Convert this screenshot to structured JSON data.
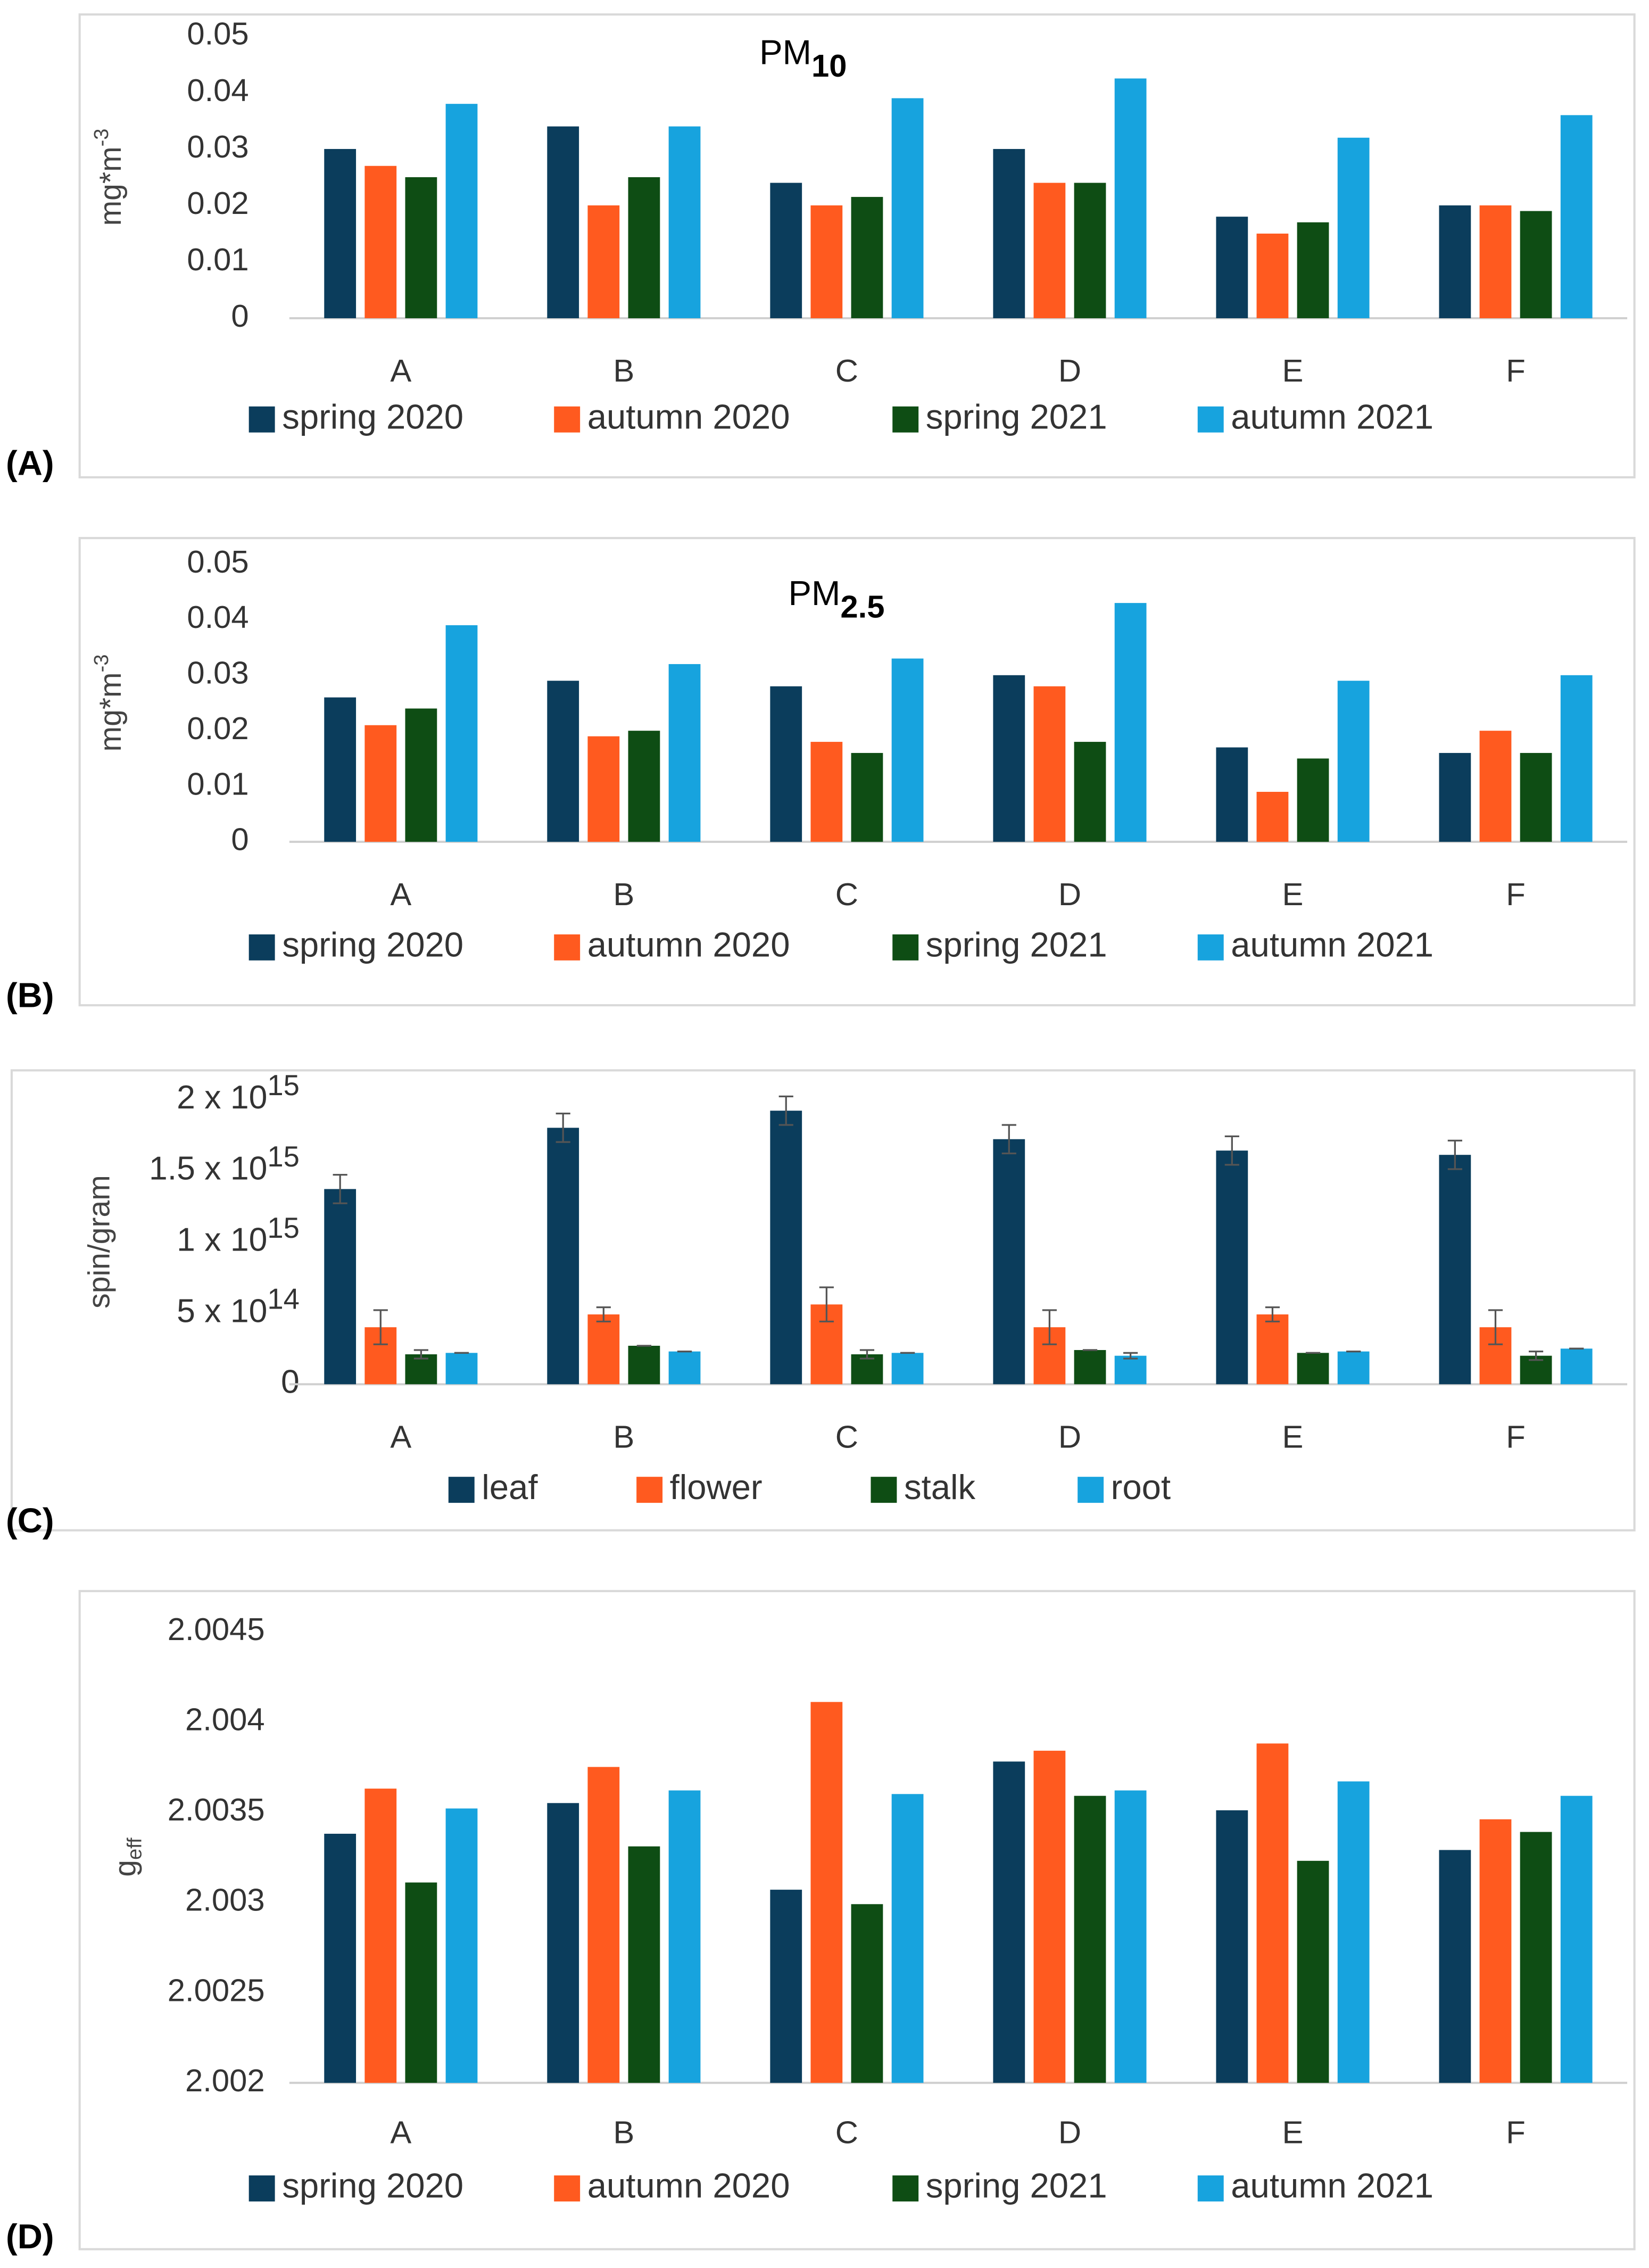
{
  "chart_data": [
    {
      "type": "bar",
      "panel_label": "(A)",
      "title": "PM",
      "title_subscript": "10",
      "y_label": "mg*m",
      "y_label_superscript": "-3",
      "categories": [
        "A",
        "B",
        "C",
        "D",
        "E",
        "F"
      ],
      "series": [
        {
          "name": "spring 2020",
          "color": "#0b3d5c",
          "values": [
            0.03,
            0.034,
            0.024,
            0.03,
            0.018,
            0.02
          ]
        },
        {
          "name": "autumn 2020",
          "color": "#ff5a1f",
          "values": [
            0.027,
            0.02,
            0.02,
            0.024,
            0.015,
            0.02
          ]
        },
        {
          "name": "spring 2021",
          "color": "#0e4d14",
          "values": [
            0.025,
            0.025,
            0.0215,
            0.024,
            0.017,
            0.019
          ]
        },
        {
          "name": "autumn 2021",
          "color": "#17a3de",
          "values": [
            0.038,
            0.034,
            0.039,
            0.0425,
            0.032,
            0.036
          ]
        }
      ],
      "ylim": [
        0,
        0.05
      ],
      "yticks": [
        0,
        0.01,
        0.02,
        0.03,
        0.04,
        0.05
      ]
    },
    {
      "type": "bar",
      "panel_label": "(B)",
      "title": "PM",
      "title_subscript": "2.5",
      "y_label": "mg*m",
      "y_label_superscript": "-3",
      "categories": [
        "A",
        "B",
        "C",
        "D",
        "E",
        "F"
      ],
      "series": [
        {
          "name": "spring 2020",
          "color": "#0b3d5c",
          "values": [
            0.026,
            0.029,
            0.028,
            0.03,
            0.017,
            0.016
          ]
        },
        {
          "name": "autumn 2020",
          "color": "#ff5a1f",
          "values": [
            0.021,
            0.019,
            0.018,
            0.028,
            0.009,
            0.02
          ]
        },
        {
          "name": "spring 2021",
          "color": "#0e4d14",
          "values": [
            0.024,
            0.02,
            0.016,
            0.018,
            0.015,
            0.016
          ]
        },
        {
          "name": "autumn 2021",
          "color": "#17a3de",
          "values": [
            0.039,
            0.032,
            0.033,
            0.043,
            0.029,
            0.03
          ]
        }
      ],
      "ylim": [
        0,
        0.05
      ],
      "yticks": [
        0,
        0.01,
        0.02,
        0.03,
        0.04,
        0.05
      ]
    },
    {
      "type": "bar",
      "panel_label": "(C)",
      "y_label": "spin/gram",
      "categories": [
        "A",
        "B",
        "C",
        "D",
        "E",
        "F"
      ],
      "series": [
        {
          "name": "leaf",
          "color": "#0b3d5c",
          "values": [
            1370000000000000.0,
            1800000000000000.0,
            1920000000000000.0,
            1720000000000000.0,
            1640000000000000.0,
            1610000000000000.0
          ],
          "errors": [
            100000000000000.0,
            100000000000000.0,
            100000000000000.0,
            100000000000000.0,
            100000000000000.0,
            100000000000000.0
          ]
        },
        {
          "name": "flower",
          "color": "#ff5a1f",
          "values": [
            400000000000000.0,
            490000000000000.0,
            560000000000000.0,
            400000000000000.0,
            490000000000000.0,
            400000000000000.0
          ],
          "errors": [
            120000000000000.0,
            50000000000000.0,
            120000000000000.0,
            120000000000000.0,
            50000000000000.0,
            120000000000000.0
          ]
        },
        {
          "name": "stalk",
          "color": "#0e4d14",
          "values": [
            210000000000000.0,
            270000000000000.0,
            210000000000000.0,
            240000000000000.0,
            220000000000000.0,
            200000000000000.0
          ],
          "errors": [
            30000000000000.0,
            0,
            30000000000000.0,
            0,
            0,
            30000000000000.0
          ]
        },
        {
          "name": "root",
          "color": "#17a3de",
          "values": [
            220000000000000.0,
            230000000000000.0,
            220000000000000.0,
            200000000000000.0,
            230000000000000.0,
            250000000000000.0
          ],
          "errors": [
            0,
            0,
            0,
            20000000000000.0,
            0,
            0
          ]
        }
      ],
      "ylim": [
        0,
        2000000000000000.0
      ],
      "yticks": [
        0,
        {
          "value": 500000000000000.0,
          "label": "5 x 10",
          "exponent": "14"
        },
        {
          "value": 1000000000000000.0,
          "label": "1 x 10",
          "exponent": "15"
        },
        {
          "value": 1500000000000000.0,
          "label": "1.5 x 10",
          "exponent": "15"
        },
        {
          "value": 2000000000000000.0,
          "label": "2 x 10",
          "exponent": "15"
        }
      ]
    },
    {
      "type": "bar",
      "panel_label": "(D)",
      "y_label": "g",
      "y_label_subscript": "eff",
      "categories": [
        "A",
        "B",
        "C",
        "D",
        "E",
        "F"
      ],
      "series": [
        {
          "name": "spring 2020",
          "color": "#0b3d5c",
          "values": [
            2.00338,
            2.00355,
            2.00307,
            2.00378,
            2.00351,
            2.00329
          ]
        },
        {
          "name": "autumn 2020",
          "color": "#ff5a1f",
          "values": [
            2.00363,
            2.00375,
            2.00411,
            2.00384,
            2.00388,
            2.00346
          ]
        },
        {
          "name": "spring 2021",
          "color": "#0e4d14",
          "values": [
            2.00311,
            2.00331,
            2.00299,
            2.00359,
            2.00323,
            2.00339
          ]
        },
        {
          "name": "autumn 2021",
          "color": "#17a3de",
          "values": [
            2.00352,
            2.00362,
            2.0036,
            2.00362,
            2.00367,
            2.00359
          ]
        }
      ],
      "ylim": [
        2.002,
        2.0045
      ],
      "yticks": [
        2.002,
        2.0025,
        2.003,
        2.0035,
        2.004,
        2.0045
      ]
    }
  ]
}
